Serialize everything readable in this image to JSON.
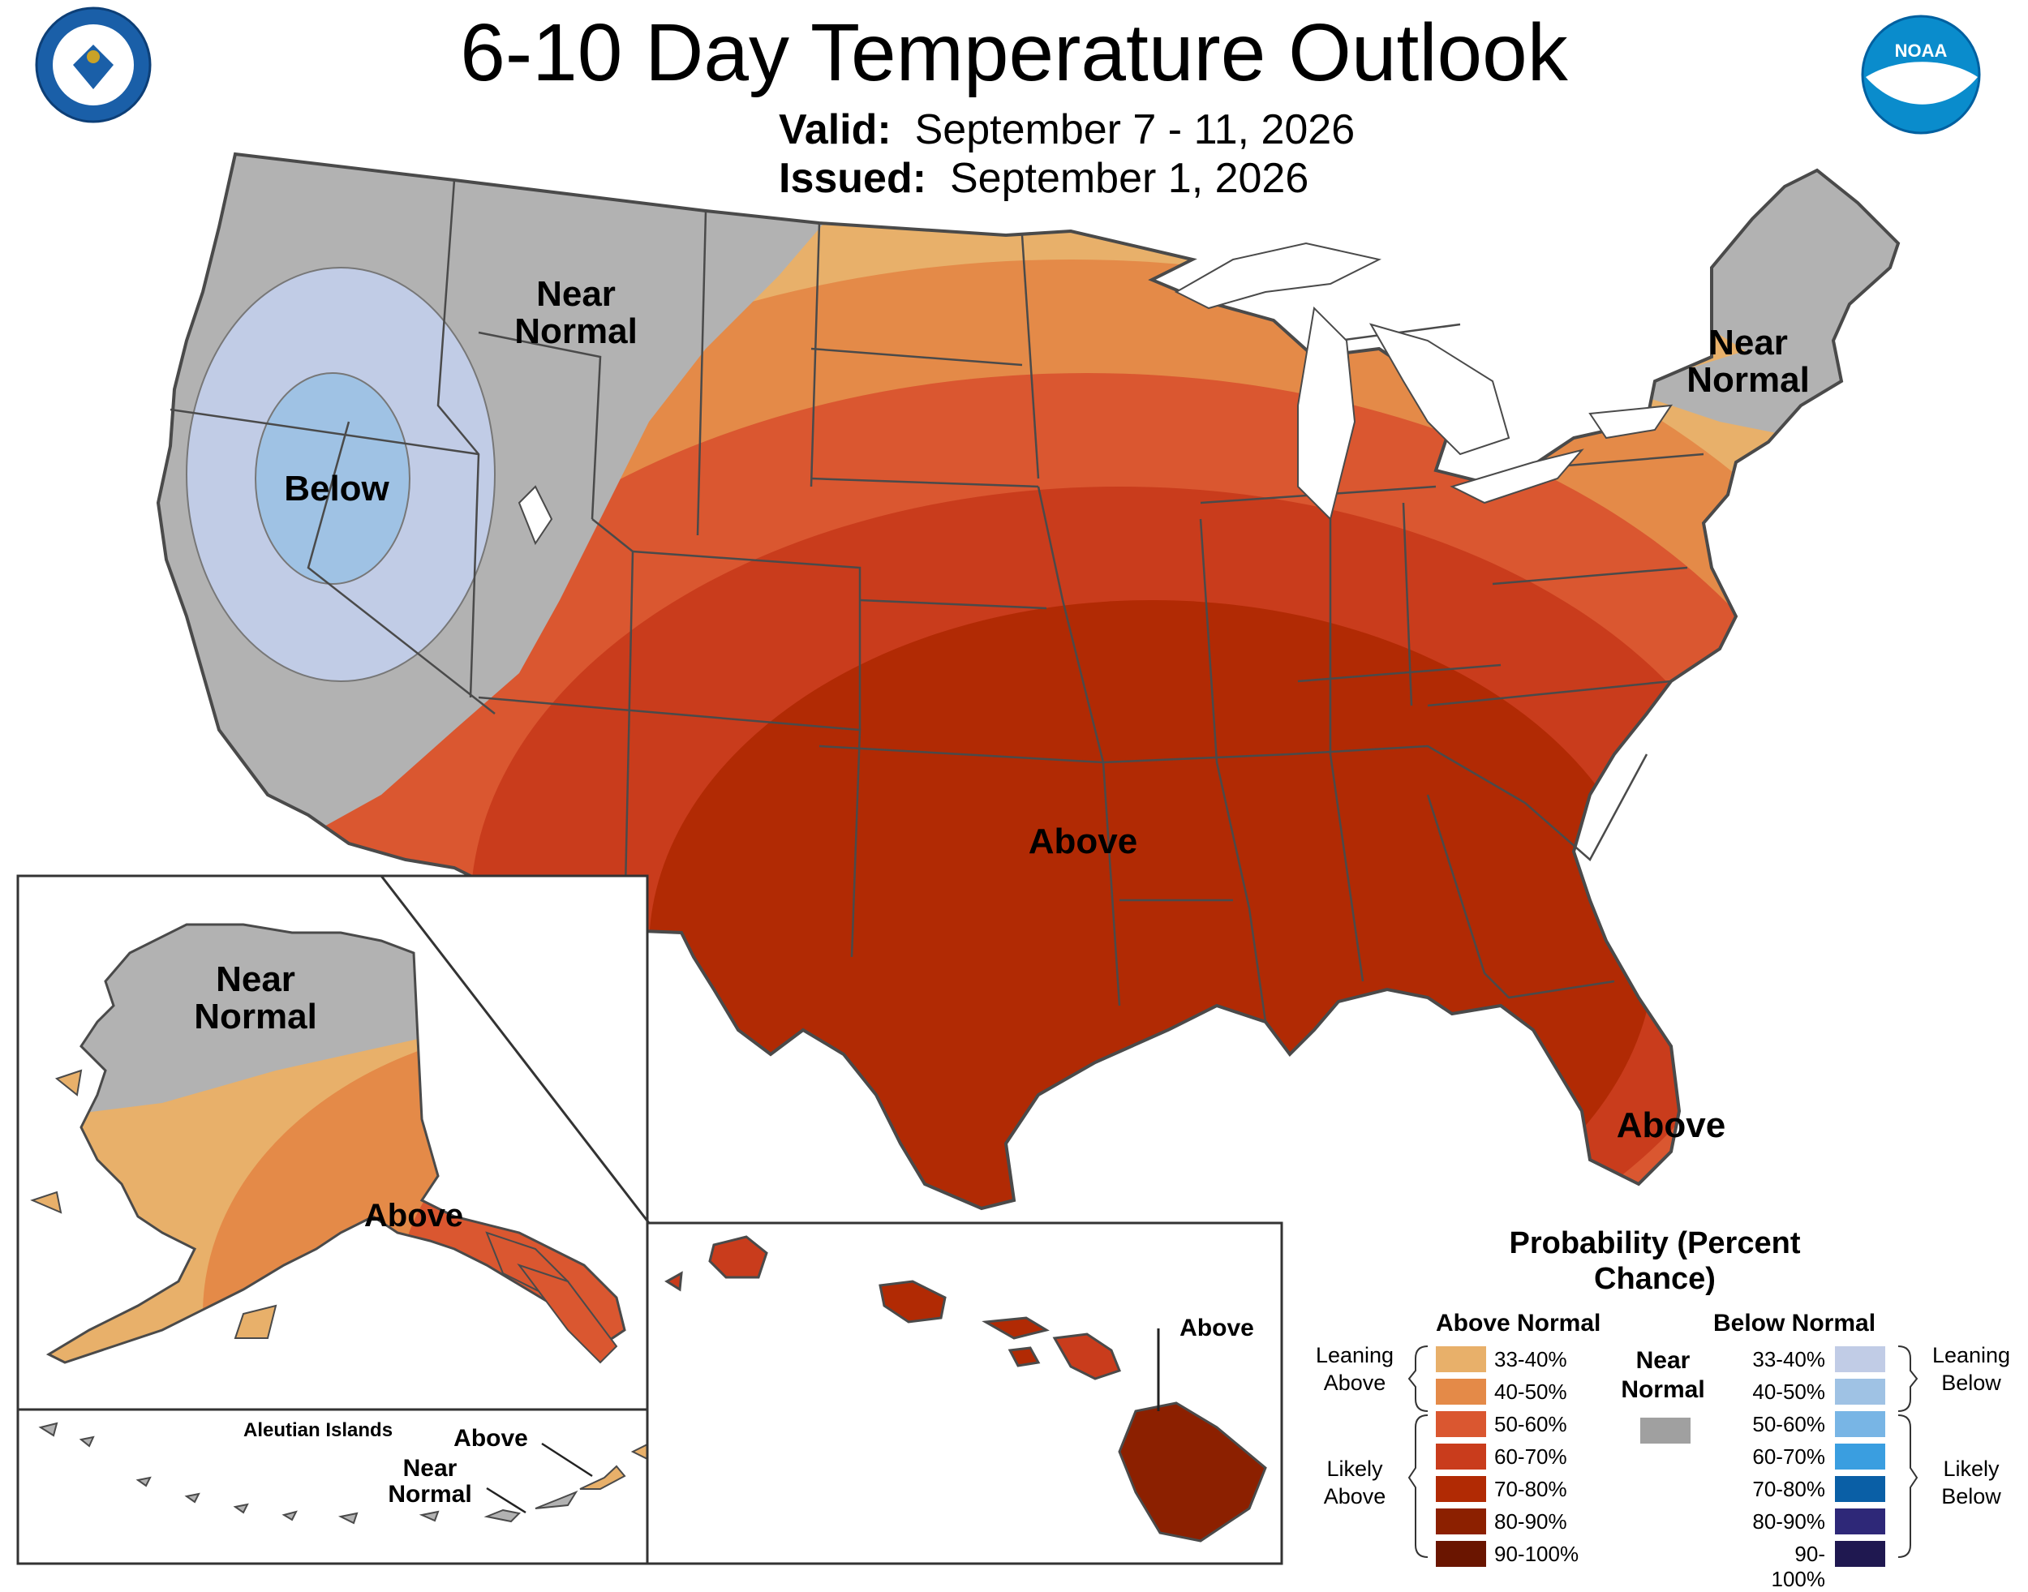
{
  "header": {
    "title": "6-10 Day Temperature Outlook",
    "valid_label": "Valid:",
    "valid_value": "September 7 - 11, 2026",
    "issued_label": "Issued:",
    "issued_value": "September 1, 2026"
  },
  "logos": {
    "commerce": "department-of-commerce-seal",
    "noaa": "NOAA"
  },
  "regions": {
    "conus_near_normal_west": "Near Normal",
    "conus_below": "Below",
    "conus_above": "Above",
    "conus_near_normal_northeast": "Near Normal",
    "florida_above": "Above",
    "alaska_near_normal": "Near Normal",
    "alaska_above": "Above",
    "aleutian_title": "Aleutian Islands",
    "aleutian_above": "Above",
    "aleutian_near_normal": "Near Normal",
    "hawaii_above": "Above"
  },
  "legend": {
    "title": "Probability (Percent Chance)",
    "above_header": "Above Normal",
    "below_header": "Below Normal",
    "near_header": "Near Normal",
    "leaning_above": "Leaning Above",
    "likely_above": "Likely Above",
    "leaning_below": "Leaning Below",
    "likely_below": "Likely Below",
    "above_levels": [
      {
        "label": "33-40%",
        "color": "#e8b06a"
      },
      {
        "label": "40-50%",
        "color": "#e48a48"
      },
      {
        "label": "50-60%",
        "color": "#da5730"
      },
      {
        "label": "60-70%",
        "color": "#c93c1c"
      },
      {
        "label": "70-80%",
        "color": "#b12a04"
      },
      {
        "label": "80-90%",
        "color": "#8c2000"
      },
      {
        "label": "90-100%",
        "color": "#6a1500"
      }
    ],
    "below_levels": [
      {
        "label": "33-40%",
        "color": "#c1cce6"
      },
      {
        "label": "40-50%",
        "color": "#9fc2e4"
      },
      {
        "label": "50-60%",
        "color": "#78b5e5"
      },
      {
        "label": "60-70%",
        "color": "#3a9ee0"
      },
      {
        "label": "70-80%",
        "color": "#0a5fa6"
      },
      {
        "label": "80-90%",
        "color": "#2e2878"
      },
      {
        "label": "90-100%",
        "color": "#1f1850"
      }
    ],
    "near_color": "#a0a0a0"
  },
  "colors": {
    "near_normal_gray": "#b2b2b2",
    "border": "#4a4a4a"
  }
}
